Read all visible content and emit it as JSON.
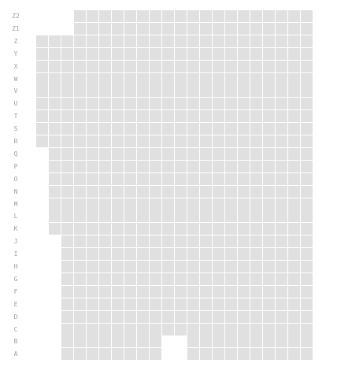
{
  "seat_map": {
    "seat_color": "#e0e0e0",
    "label_color": "#9e9e9e",
    "columns": 22,
    "rows": [
      {
        "label": "Z2",
        "seat_ranges": [
          [
            4,
            22
          ]
        ]
      },
      {
        "label": "Z1",
        "seat_ranges": [
          [
            4,
            22
          ]
        ]
      },
      {
        "label": "Z",
        "seat_ranges": [
          [
            1,
            22
          ]
        ]
      },
      {
        "label": "Y",
        "seat_ranges": [
          [
            1,
            22
          ]
        ]
      },
      {
        "label": "X",
        "seat_ranges": [
          [
            1,
            22
          ]
        ]
      },
      {
        "label": "W",
        "seat_ranges": [
          [
            1,
            22
          ]
        ]
      },
      {
        "label": "V",
        "seat_ranges": [
          [
            1,
            22
          ]
        ]
      },
      {
        "label": "U",
        "seat_ranges": [
          [
            1,
            22
          ]
        ]
      },
      {
        "label": "T",
        "seat_ranges": [
          [
            1,
            22
          ]
        ]
      },
      {
        "label": "S",
        "seat_ranges": [
          [
            1,
            22
          ]
        ]
      },
      {
        "label": "R",
        "seat_ranges": [
          [
            1,
            22
          ]
        ]
      },
      {
        "label": "Q",
        "seat_ranges": [
          [
            2,
            22
          ]
        ]
      },
      {
        "label": "P",
        "seat_ranges": [
          [
            2,
            22
          ]
        ]
      },
      {
        "label": "O",
        "seat_ranges": [
          [
            2,
            22
          ]
        ]
      },
      {
        "label": "N",
        "seat_ranges": [
          [
            2,
            22
          ]
        ]
      },
      {
        "label": "M",
        "seat_ranges": [
          [
            2,
            22
          ]
        ]
      },
      {
        "label": "L",
        "seat_ranges": [
          [
            2,
            22
          ]
        ]
      },
      {
        "label": "K",
        "seat_ranges": [
          [
            2,
            22
          ]
        ]
      },
      {
        "label": "J",
        "seat_ranges": [
          [
            3,
            22
          ]
        ]
      },
      {
        "label": "I",
        "seat_ranges": [
          [
            3,
            22
          ]
        ]
      },
      {
        "label": "H",
        "seat_ranges": [
          [
            3,
            22
          ]
        ]
      },
      {
        "label": "G",
        "seat_ranges": [
          [
            3,
            22
          ]
        ]
      },
      {
        "label": "F",
        "seat_ranges": [
          [
            3,
            22
          ]
        ]
      },
      {
        "label": "E",
        "seat_ranges": [
          [
            3,
            22
          ]
        ]
      },
      {
        "label": "D",
        "seat_ranges": [
          [
            3,
            22
          ]
        ]
      },
      {
        "label": "C",
        "seat_ranges": [
          [
            3,
            22
          ]
        ]
      },
      {
        "label": "B",
        "seat_ranges": [
          [
            3,
            10
          ],
          [
            13,
            22
          ]
        ]
      },
      {
        "label": "A",
        "seat_ranges": [
          [
            3,
            10
          ],
          [
            13,
            22
          ]
        ]
      }
    ]
  }
}
